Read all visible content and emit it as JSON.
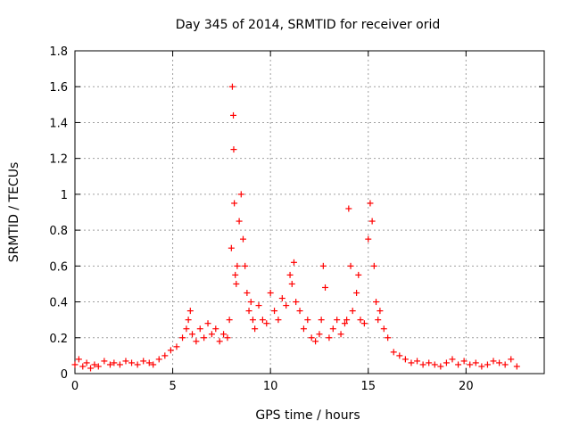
{
  "chart_data": {
    "type": "scatter",
    "title": "Day 345 of 2014, SRMTID for receiver orid",
    "xlabel": "GPS time / hours",
    "ylabel": "SRMTID / TECUs",
    "xlim": [
      0,
      24
    ],
    "ylim": [
      0,
      1.8
    ],
    "xticks": [
      "0",
      "5",
      "10",
      "15",
      "20"
    ],
    "yticks": [
      "0",
      "0.2",
      "0.4",
      "0.6",
      "0.8",
      "1",
      "1.2",
      "1.4",
      "1.6",
      "1.8"
    ],
    "grid": true,
    "marker": "+",
    "series": [
      {
        "name": "SRMTID",
        "color": "#ff0000",
        "x": [
          0.0,
          0.2,
          0.4,
          0.6,
          0.8,
          1.0,
          1.2,
          1.5,
          1.8,
          2.0,
          2.3,
          2.6,
          2.9,
          3.2,
          3.5,
          3.8,
          4.0,
          4.3,
          4.6,
          4.9,
          5.2,
          5.5,
          5.7,
          5.8,
          5.9,
          6.0,
          6.2,
          6.4,
          6.6,
          6.8,
          7.0,
          7.2,
          7.4,
          7.6,
          7.8,
          7.9,
          8.0,
          8.05,
          8.1,
          8.12,
          8.15,
          8.2,
          8.25,
          8.3,
          8.4,
          8.5,
          8.6,
          8.7,
          8.8,
          8.9,
          9.0,
          9.1,
          9.2,
          9.4,
          9.6,
          9.8,
          10.0,
          10.2,
          10.4,
          10.6,
          10.8,
          11.0,
          11.1,
          11.2,
          11.3,
          11.5,
          11.7,
          11.9,
          12.1,
          12.3,
          12.5,
          12.6,
          12.7,
          12.8,
          13.0,
          13.2,
          13.4,
          13.6,
          13.8,
          13.9,
          14.0,
          14.1,
          14.2,
          14.4,
          14.5,
          14.6,
          14.8,
          15.0,
          15.1,
          15.2,
          15.3,
          15.4,
          15.5,
          15.6,
          15.8,
          16.0,
          16.3,
          16.6,
          16.9,
          17.2,
          17.5,
          17.8,
          18.1,
          18.4,
          18.7,
          19.0,
          19.3,
          19.6,
          19.9,
          20.2,
          20.5,
          20.8,
          21.1,
          21.4,
          21.7,
          22.0,
          22.3,
          22.6
        ],
        "y": [
          0.05,
          0.08,
          0.04,
          0.06,
          0.03,
          0.05,
          0.04,
          0.07,
          0.05,
          0.06,
          0.05,
          0.07,
          0.06,
          0.05,
          0.07,
          0.06,
          0.05,
          0.08,
          0.1,
          0.13,
          0.15,
          0.2,
          0.25,
          0.3,
          0.35,
          0.22,
          0.18,
          0.25,
          0.2,
          0.28,
          0.22,
          0.25,
          0.18,
          0.22,
          0.2,
          0.3,
          0.7,
          1.6,
          1.44,
          1.25,
          0.95,
          0.55,
          0.5,
          0.6,
          0.85,
          1.0,
          0.75,
          0.6,
          0.45,
          0.35,
          0.4,
          0.3,
          0.25,
          0.38,
          0.3,
          0.28,
          0.45,
          0.35,
          0.3,
          0.42,
          0.38,
          0.55,
          0.5,
          0.62,
          0.4,
          0.35,
          0.25,
          0.3,
          0.2,
          0.18,
          0.22,
          0.3,
          0.6,
          0.48,
          0.2,
          0.25,
          0.3,
          0.22,
          0.28,
          0.3,
          0.92,
          0.6,
          0.35,
          0.45,
          0.55,
          0.3,
          0.28,
          0.75,
          0.95,
          0.85,
          0.6,
          0.4,
          0.3,
          0.35,
          0.25,
          0.2,
          0.12,
          0.1,
          0.08,
          0.06,
          0.07,
          0.05,
          0.06,
          0.05,
          0.04,
          0.06,
          0.08,
          0.05,
          0.07,
          0.05,
          0.06,
          0.04,
          0.05,
          0.07,
          0.06,
          0.05,
          0.08,
          0.04
        ]
      }
    ]
  }
}
